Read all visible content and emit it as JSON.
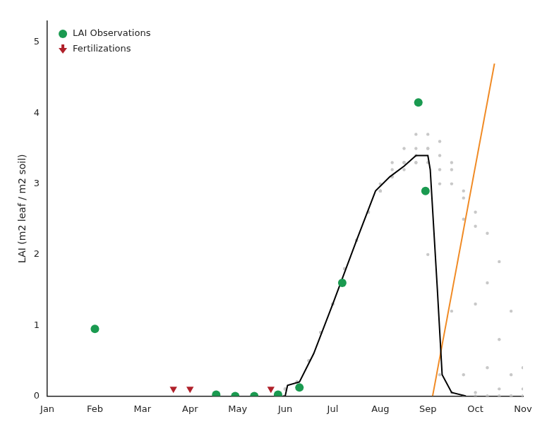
{
  "chart_data": {
    "type": "scatter",
    "y_label": "LAI (m2 leaf / m2 soil)",
    "xlim": [
      0,
      10
    ],
    "xticks": [
      {
        "value": 0,
        "label": "Jan"
      },
      {
        "value": 1,
        "label": "Feb"
      },
      {
        "value": 2,
        "label": "Mar"
      },
      {
        "value": 3,
        "label": "Apr"
      },
      {
        "value": 4,
        "label": "May"
      },
      {
        "value": 5,
        "label": "Jun"
      },
      {
        "value": 6,
        "label": "Jul"
      },
      {
        "value": 7,
        "label": "Aug"
      },
      {
        "value": 8,
        "label": "Sep"
      },
      {
        "value": 9,
        "label": "Oct"
      },
      {
        "value": 10,
        "label": "Nov"
      }
    ],
    "ylim": [
      0,
      5.3
    ],
    "yticks": [
      0,
      1,
      2,
      3,
      4,
      5
    ],
    "grid": false,
    "legend": "upper left",
    "series": [
      {
        "type": "scatter",
        "marker": "circle",
        "line_style": "none",
        "color": "#c8c8c8",
        "x": [
          5.0,
          5.25,
          5.5,
          5.75,
          6.0,
          6.25,
          6.5,
          6.75,
          7.0,
          7.25,
          7.5,
          7.75,
          8.0,
          8.25,
          8.5,
          8.75,
          9.0,
          9.25,
          9.5,
          9.75,
          10.0
        ],
        "values": [
          0.1,
          0.2,
          0.5,
          0.9,
          1.3,
          1.8,
          2.2,
          2.6,
          2.9,
          3.2,
          3.3,
          3.3,
          2.0,
          0.3,
          0.05,
          0,
          0,
          0,
          0,
          0,
          0
        ]
      },
      {
        "type": "scatter",
        "marker": "circle",
        "line_style": "none",
        "color": "#c8c8c8",
        "x": [
          5.0,
          5.25,
          5.5,
          5.75,
          6.0,
          6.25,
          6.5,
          6.75,
          7.0,
          7.25,
          7.5,
          7.75,
          8.0,
          8.25,
          8.5,
          8.75,
          9.0,
          9.25,
          9.5,
          9.75,
          10.0
        ],
        "values": [
          0.1,
          0.2,
          0.5,
          0.9,
          1.3,
          1.8,
          2.2,
          2.6,
          2.9,
          3.1,
          3.3,
          3.5,
          3.5,
          3.0,
          1.2,
          0.3,
          0.05,
          0,
          0,
          0,
          0
        ]
      },
      {
        "type": "scatter",
        "marker": "circle",
        "line_style": "none",
        "color": "#c8c8c8",
        "x": [
          5.0,
          5.25,
          5.5,
          5.75,
          6.0,
          6.25,
          6.5,
          6.75,
          7.0,
          7.25,
          7.5,
          7.75,
          8.0,
          8.25,
          8.5,
          8.75,
          9.0,
          9.25,
          9.5,
          9.75,
          10.0
        ],
        "values": [
          0.1,
          0.2,
          0.5,
          0.9,
          1.3,
          1.8,
          2.2,
          2.6,
          3.0,
          3.3,
          3.5,
          3.7,
          3.7,
          3.6,
          3.3,
          2.5,
          1.3,
          0.4,
          0.1,
          0,
          0
        ]
      },
      {
        "type": "scatter",
        "marker": "circle",
        "line_style": "none",
        "color": "#c8c8c8",
        "x": [
          5.0,
          5.25,
          5.5,
          5.75,
          6.0,
          6.25,
          6.5,
          6.75,
          7.0,
          7.25,
          7.5,
          7.75,
          8.0,
          8.25,
          8.5,
          8.75,
          9.0,
          9.25,
          9.5,
          9.75,
          10.0
        ],
        "values": [
          0.1,
          0.2,
          0.5,
          0.9,
          1.3,
          1.8,
          2.2,
          2.6,
          2.9,
          3.1,
          3.3,
          3.4,
          3.5,
          3.4,
          3.2,
          2.9,
          2.4,
          1.6,
          0.8,
          0.3,
          0.1
        ]
      },
      {
        "type": "scatter",
        "marker": "circle",
        "line_style": "none",
        "color": "#c8c8c8",
        "x": [
          5.0,
          5.25,
          5.5,
          5.75,
          6.0,
          6.25,
          6.5,
          6.75,
          7.0,
          7.25,
          7.5,
          7.75,
          8.0,
          8.25,
          8.5,
          8.75,
          9.0,
          9.25,
          9.5,
          9.75,
          10.0
        ],
        "values": [
          0.1,
          0.2,
          0.5,
          0.9,
          1.3,
          1.8,
          2.2,
          2.6,
          2.9,
          3.1,
          3.2,
          3.3,
          3.3,
          3.2,
          3.0,
          2.8,
          2.6,
          2.3,
          1.9,
          1.2,
          0.4
        ]
      },
      {
        "type": "line",
        "marker": "none",
        "line_style": "solid",
        "color": "#000000",
        "x": [
          4.95,
          5.0,
          5.05,
          5.3,
          5.6,
          6.0,
          6.5,
          6.9,
          7.2,
          7.5,
          7.75,
          8.0,
          8.05,
          8.2,
          8.3,
          8.5,
          8.8
        ],
        "values": [
          0,
          0,
          0.15,
          0.2,
          0.6,
          1.3,
          2.2,
          2.9,
          3.1,
          3.25,
          3.4,
          3.4,
          3.2,
          1.5,
          0.3,
          0.05,
          0
        ]
      },
      {
        "type": "line",
        "marker": "none",
        "line_style": "solid",
        "color": "#f08a24",
        "x": [
          8.1,
          9.4
        ],
        "values": [
          0,
          4.7
        ]
      },
      {
        "name": "LAI Observations",
        "type": "scatter",
        "marker": "circle",
        "line_style": "none",
        "color": "#1a9a50",
        "x": [
          1.0,
          3.55,
          3.95,
          4.35,
          4.85,
          5.3,
          6.2,
          7.8,
          7.95
        ],
        "values": [
          0.95,
          0.02,
          0.0,
          0.0,
          0.02,
          0.12,
          1.6,
          4.15,
          2.9
        ]
      },
      {
        "name": "Fertilizations",
        "type": "scatter",
        "marker": "arrow_down",
        "line_style": "none",
        "color": "#b0202a",
        "x": [
          2.65,
          3.0,
          4.7
        ],
        "values": [
          0.1,
          0.1,
          0.1
        ]
      }
    ]
  }
}
